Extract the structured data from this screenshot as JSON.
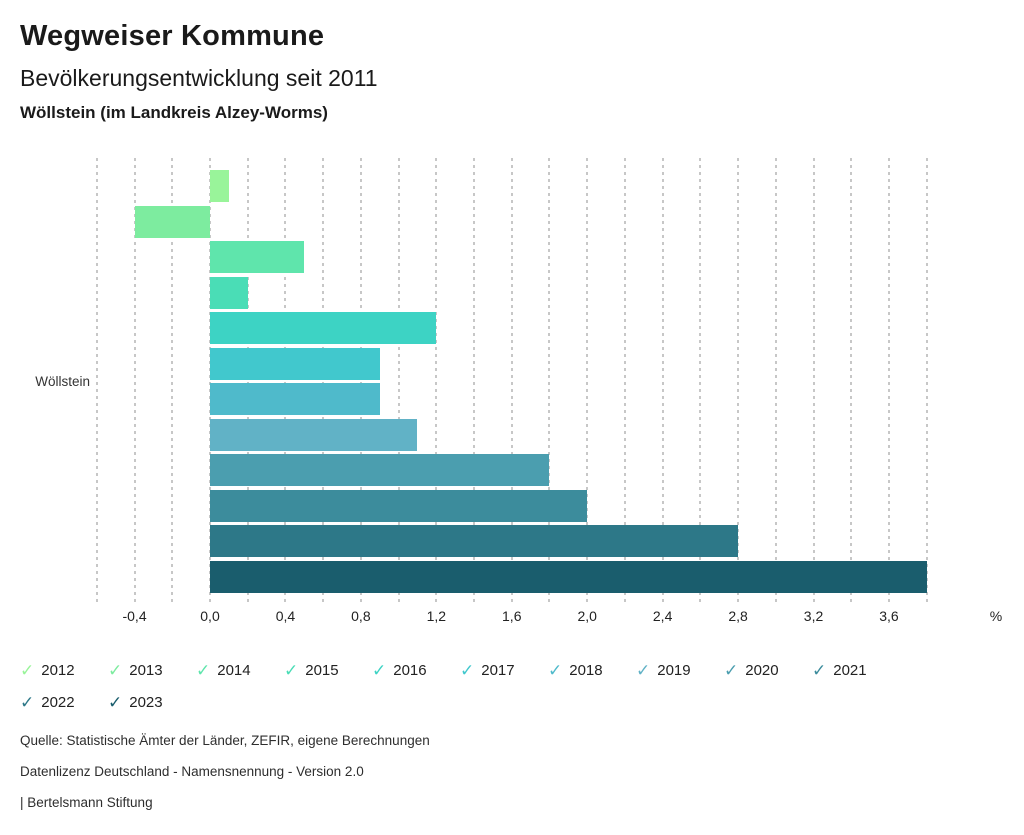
{
  "header": {
    "title": "Wegweiser Kommune",
    "subtitle": "Bevölkerungsentwicklung seit 2011",
    "region_line": "Wöllstein (im Landkreis Alzey-Worms)"
  },
  "chart_data": {
    "type": "bar",
    "orientation": "horizontal",
    "title": "Bevölkerungsentwicklung seit 2011",
    "group_label": "Wöllstein",
    "unit": "%",
    "categories": [
      "2012",
      "2013",
      "2014",
      "2015",
      "2016",
      "2017",
      "2018",
      "2019",
      "2020",
      "2021",
      "2022",
      "2023"
    ],
    "values": [
      0.1,
      -0.4,
      0.5,
      0.2,
      1.2,
      0.9,
      0.9,
      1.1,
      1.8,
      2.0,
      2.8,
      3.8
    ],
    "colors": [
      "#99f49a",
      "#7dec9f",
      "#5fe5ac",
      "#4addb6",
      "#3dd3c4",
      "#41c8cd",
      "#4fbacb",
      "#61b2c6",
      "#4b9eaf",
      "#3c8c9c",
      "#2d7888",
      "#1a5d6d"
    ],
    "xlim": [
      -0.6,
      3.8
    ],
    "gridline_step": 0.2,
    "grid": "dotted-vertical",
    "x_ticks": [
      {
        "value": -0.4,
        "label": "-0,4"
      },
      {
        "value": 0.0,
        "label": "0,0"
      },
      {
        "value": 0.4,
        "label": "0,4"
      },
      {
        "value": 0.8,
        "label": "0,8"
      },
      {
        "value": 1.2,
        "label": "1,2"
      },
      {
        "value": 1.6,
        "label": "1,6"
      },
      {
        "value": 2.0,
        "label": "2,0"
      },
      {
        "value": 2.4,
        "label": "2,4"
      },
      {
        "value": 2.8,
        "label": "2,8"
      },
      {
        "value": 3.2,
        "label": "3,2"
      },
      {
        "value": 3.6,
        "label": "3,6"
      }
    ],
    "legend_position": "bottom"
  },
  "legend": {
    "check_glyph": "✓",
    "items": [
      {
        "label": "2012",
        "color": "#99f49a"
      },
      {
        "label": "2013",
        "color": "#7dec9f"
      },
      {
        "label": "2014",
        "color": "#5fe5ac"
      },
      {
        "label": "2015",
        "color": "#4addb6"
      },
      {
        "label": "2016",
        "color": "#3dd3c4"
      },
      {
        "label": "2017",
        "color": "#41c8cd"
      },
      {
        "label": "2018",
        "color": "#4fbacb"
      },
      {
        "label": "2019",
        "color": "#61b2c6"
      },
      {
        "label": "2020",
        "color": "#4b9eaf"
      },
      {
        "label": "2021",
        "color": "#3c8c9c"
      },
      {
        "label": "2022",
        "color": "#2d7888"
      },
      {
        "label": "2023",
        "color": "#1a5d6d"
      }
    ]
  },
  "footer": {
    "source": "Quelle: Statistische Ämter der Länder, ZEFIR, eigene Berechnungen",
    "license": "Datenlizenz Deutschland - Namensnennung - Version 2.0",
    "attribution": "| Bertelsmann Stiftung"
  }
}
